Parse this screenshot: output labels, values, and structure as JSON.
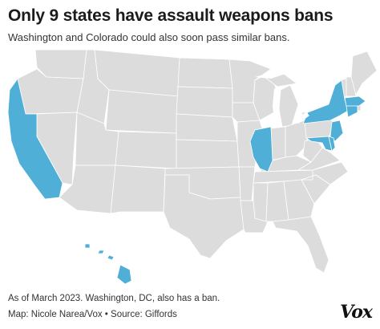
{
  "title": "Only 9 states have assault weapons bans",
  "subtitle": "Washington and Colorado could also soon pass similar bans.",
  "note": "As of March 2023. Washington, DC, also has a ban.",
  "credit": "Map: Nicole Narea/Vox • Source: Giffords",
  "logo": "Vox",
  "colors": {
    "ban": "#4fafd6",
    "no_ban": "#dcdcdc",
    "border": "#ffffff"
  },
  "states_with_ban": [
    "California",
    "Illinois",
    "New York",
    "New Jersey",
    "Connecticut",
    "Massachusetts",
    "Maryland",
    "Delaware",
    "Hawaii"
  ]
}
